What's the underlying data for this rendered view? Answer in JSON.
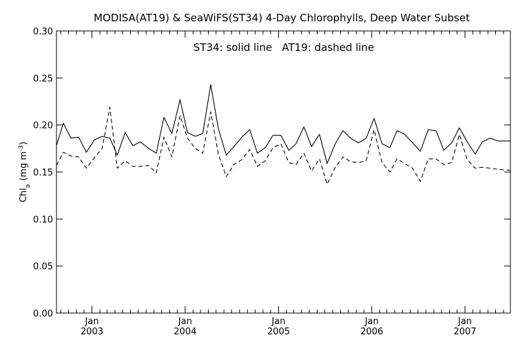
{
  "chart_data": {
    "type": "line",
    "title": "MODISA(AT19) & SeaWiFS(ST34) 4-Day Chlorophylls, Deep Water Subset",
    "annotation": "ST34: solid line   AT19: dashed line",
    "ylabel_prefix": "Chl",
    "ylabel_sub": "a",
    "ylabel_unit": "(mg m",
    "ylabel_sup": "-3",
    "ylabel_close": ")",
    "ylim": [
      0.0,
      0.3
    ],
    "yticks": [
      0.0,
      0.05,
      0.1,
      0.15,
      0.2,
      0.25,
      0.3
    ],
    "ytick_labels": [
      "0.00",
      "0.05",
      "0.10",
      "0.15",
      "0.20",
      "0.25",
      "0.30"
    ],
    "xlim": [
      "2002-08-15",
      "2007-06-28"
    ],
    "xticks": [
      {
        "date": "2003-01-01",
        "month": "Jan",
        "year": "2003"
      },
      {
        "date": "2004-01-01",
        "month": "Jan",
        "year": "2004"
      },
      {
        "date": "2005-01-01",
        "month": "Jan",
        "year": "2005"
      },
      {
        "date": "2006-01-01",
        "month": "Jan",
        "year": "2006"
      },
      {
        "date": "2007-01-01",
        "month": "Jan",
        "year": "2007"
      }
    ],
    "grid": false,
    "series": [
      {
        "name": "ST34",
        "style": "solid",
        "color": "#000000",
        "x": [
          "2002-08-15",
          "2002-09-11",
          "2002-10-10",
          "2002-11-10",
          "2002-12-10",
          "2003-01-10",
          "2003-02-10",
          "2003-03-12",
          "2003-04-10",
          "2003-05-11",
          "2003-06-10",
          "2003-07-10",
          "2003-08-11",
          "2003-09-10",
          "2003-10-10",
          "2003-11-10",
          "2003-12-12",
          "2004-01-10",
          "2004-02-10",
          "2004-03-10",
          "2004-04-10",
          "2004-05-10",
          "2004-06-10",
          "2004-07-10",
          "2004-08-10",
          "2004-09-10",
          "2004-10-10",
          "2004-11-10",
          "2004-12-10",
          "2005-01-10",
          "2005-02-10",
          "2005-03-10",
          "2005-04-10",
          "2005-05-10",
          "2005-06-10",
          "2005-07-10",
          "2005-08-11",
          "2005-09-10",
          "2005-10-10",
          "2005-11-10",
          "2005-12-10",
          "2006-01-10",
          "2006-02-10",
          "2006-03-13",
          "2006-04-10",
          "2006-05-10",
          "2006-06-10",
          "2006-07-10",
          "2006-08-10",
          "2006-09-10",
          "2006-10-10",
          "2006-11-10",
          "2006-12-10",
          "2007-01-10",
          "2007-02-10",
          "2007-03-10",
          "2007-04-10",
          "2007-05-10",
          "2007-06-09",
          "2007-06-28"
        ],
        "values": [
          0.178,
          0.202,
          0.186,
          0.187,
          0.171,
          0.184,
          0.188,
          0.186,
          0.168,
          0.192,
          0.178,
          0.182,
          0.175,
          0.17,
          0.208,
          0.191,
          0.227,
          0.192,
          0.188,
          0.191,
          0.243,
          0.196,
          0.168,
          0.177,
          0.187,
          0.195,
          0.17,
          0.176,
          0.189,
          0.189,
          0.173,
          0.18,
          0.198,
          0.177,
          0.19,
          0.159,
          0.18,
          0.194,
          0.186,
          0.181,
          0.186,
          0.207,
          0.18,
          0.176,
          0.194,
          0.19,
          0.181,
          0.172,
          0.195,
          0.194,
          0.173,
          0.181,
          0.197,
          0.182,
          0.169,
          0.182,
          0.186,
          0.183,
          0.183,
          0.183
        ]
      },
      {
        "name": "AT19",
        "style": "dashed",
        "color": "#000000",
        "x": [
          "2002-08-15",
          "2002-09-11",
          "2002-10-10",
          "2002-11-10",
          "2002-12-10",
          "2003-01-10",
          "2003-02-10",
          "2003-03-12",
          "2003-04-10",
          "2003-05-11",
          "2003-06-10",
          "2003-07-10",
          "2003-08-11",
          "2003-09-10",
          "2003-10-10",
          "2003-11-10",
          "2003-12-12",
          "2004-01-10",
          "2004-02-10",
          "2004-03-10",
          "2004-04-10",
          "2004-05-10",
          "2004-06-10",
          "2004-07-10",
          "2004-08-10",
          "2004-09-10",
          "2004-10-10",
          "2004-11-10",
          "2004-12-10",
          "2005-01-10",
          "2005-02-10",
          "2005-03-10",
          "2005-04-10",
          "2005-05-10",
          "2005-06-10",
          "2005-07-10",
          "2005-08-11",
          "2005-09-10",
          "2005-10-10",
          "2005-11-10",
          "2005-12-10",
          "2006-01-10",
          "2006-02-10",
          "2006-03-13",
          "2006-04-10",
          "2006-05-10",
          "2006-06-10",
          "2006-07-10",
          "2006-08-10",
          "2006-09-10",
          "2006-10-10",
          "2006-11-10",
          "2006-12-10",
          "2007-01-10",
          "2007-02-10",
          "2007-03-10",
          "2007-04-10",
          "2007-05-10",
          "2007-06-09",
          "2007-06-28"
        ],
        "values": [
          0.157,
          0.171,
          0.167,
          0.166,
          0.154,
          0.165,
          0.175,
          0.219,
          0.154,
          0.162,
          0.156,
          0.156,
          0.157,
          0.149,
          0.187,
          0.166,
          0.21,
          0.186,
          0.175,
          0.17,
          0.214,
          0.169,
          0.145,
          0.158,
          0.163,
          0.174,
          0.156,
          0.162,
          0.176,
          0.18,
          0.16,
          0.158,
          0.17,
          0.151,
          0.164,
          0.137,
          0.155,
          0.166,
          0.161,
          0.16,
          0.162,
          0.195,
          0.16,
          0.15,
          0.164,
          0.159,
          0.154,
          0.14,
          0.164,
          0.164,
          0.158,
          0.16,
          0.19,
          0.163,
          0.154,
          0.155,
          0.154,
          0.153,
          0.152,
          0.152
        ]
      }
    ]
  }
}
